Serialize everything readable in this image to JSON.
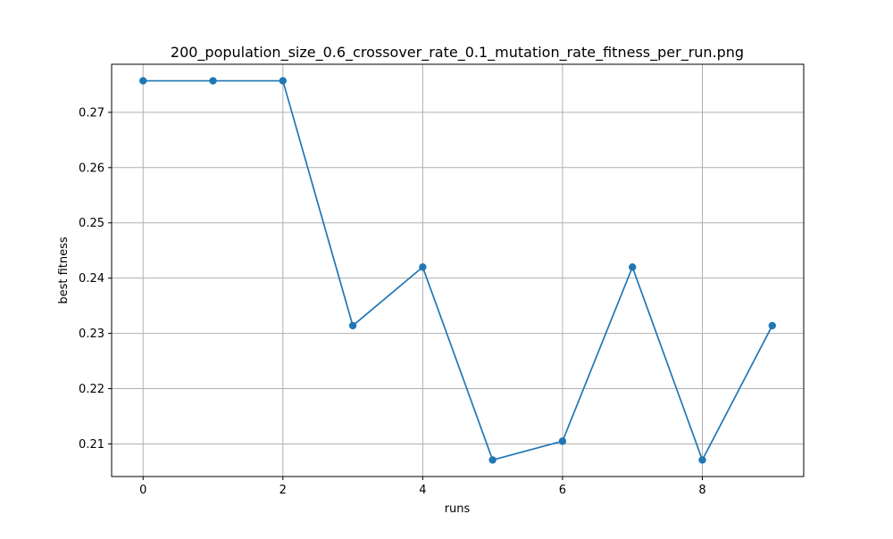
{
  "chart_data": {
    "type": "line",
    "title": "200_population_size_0.6_crossover_rate_0.1_mutation_rate_fitness_per_run.png",
    "xlabel": "runs",
    "ylabel": "best fitness",
    "x": [
      0,
      1,
      2,
      3,
      4,
      5,
      6,
      7,
      8,
      9
    ],
    "series": [
      {
        "values": [
          0.2757,
          0.2757,
          0.2757,
          0.2314,
          0.242,
          0.2071,
          0.2105,
          0.242,
          0.2071,
          0.2314
        ],
        "color": "#1f77b4",
        "marker": "circle"
      }
    ],
    "xlim": [
      -0.45,
      9.45
    ],
    "ylim": [
      0.2041,
      0.2787
    ],
    "xticks": [
      "0",
      "2",
      "4",
      "6",
      "8"
    ],
    "yticks": [
      "0.21",
      "0.22",
      "0.23",
      "0.24",
      "0.25",
      "0.26",
      "0.27"
    ],
    "grid": true,
    "legend": "none"
  }
}
